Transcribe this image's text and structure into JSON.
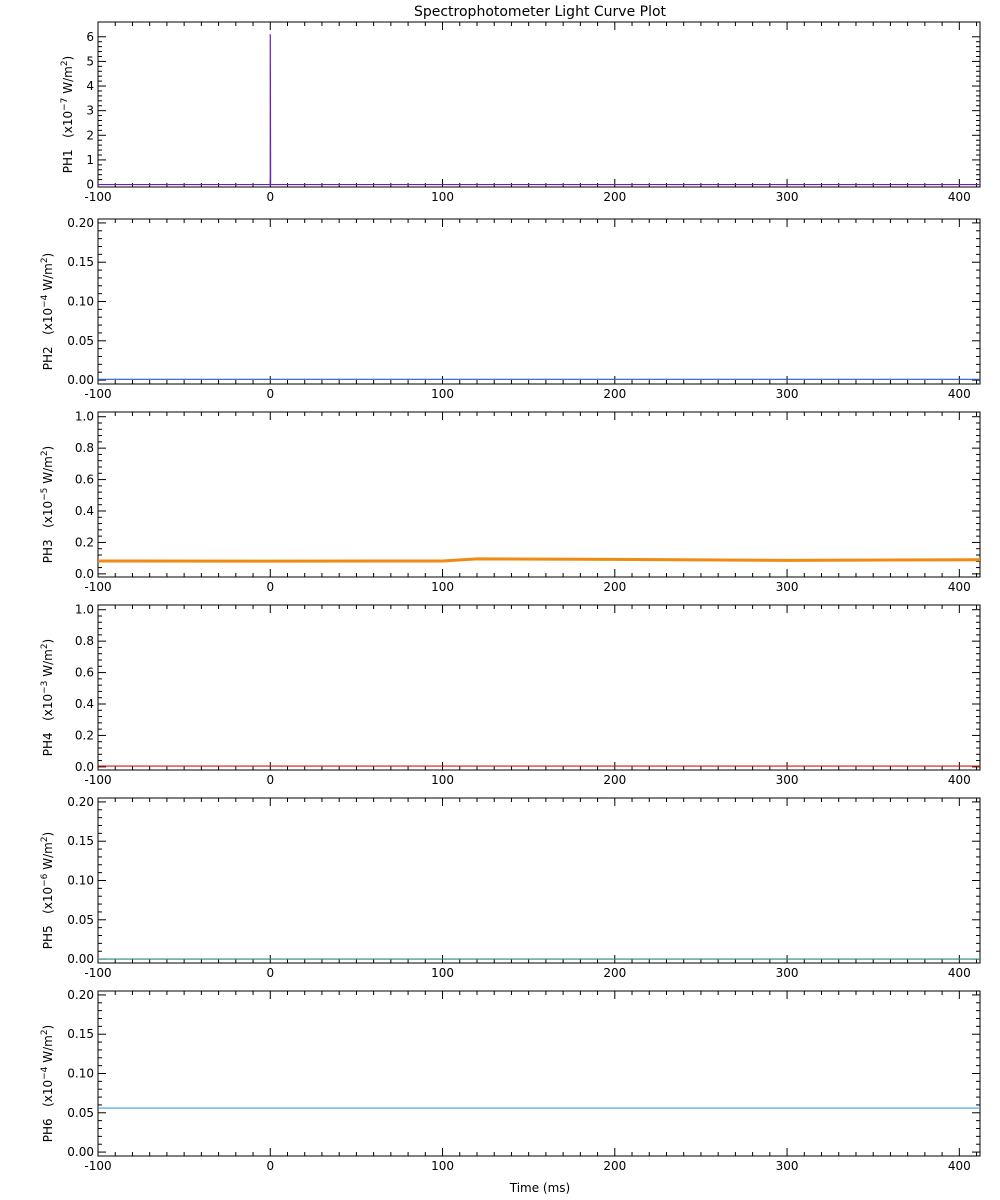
{
  "title": "Spectrophotometer Light Curve Plot",
  "xlabel": "Time (ms)",
  "chart_data": [
    {
      "type": "line",
      "panel": "PH1",
      "ylabel_name": "PH1",
      "ylabel_unit_base": "(x10",
      "ylabel_unit_exp": "−7",
      "ylabel_unit_rest": " W/m",
      "ylabel_unit_pow": "2",
      "ylabel_unit_close": ")",
      "xlim": [
        -100,
        412
      ],
      "ylim": [
        -0.1,
        6.6
      ],
      "xticks": [
        -100,
        0,
        100,
        200,
        300,
        400
      ],
      "xtick_labels": [
        "-100",
        "0",
        "100",
        "200",
        "300",
        "400"
      ],
      "yticks": [
        0,
        1,
        2,
        3,
        4,
        5,
        6
      ],
      "ytick_labels": [
        "0",
        "1",
        "2",
        "3",
        "4",
        "5",
        "6"
      ],
      "color": "#6a1fb0",
      "series": [
        {
          "x": [
            -100,
            0,
            0,
            0.2,
            412
          ],
          "y": [
            0.0,
            0.0,
            6.1,
            0.0,
            0.0
          ]
        }
      ]
    },
    {
      "type": "line",
      "panel": "PH2",
      "ylabel_name": "PH2",
      "ylabel_unit_base": "(x10",
      "ylabel_unit_exp": "−4",
      "ylabel_unit_rest": " W/m",
      "ylabel_unit_pow": "2",
      "ylabel_unit_close": ")",
      "xlim": [
        -100,
        412
      ],
      "ylim": [
        -0.005,
        0.205
      ],
      "xticks": [
        -100,
        0,
        100,
        200,
        300,
        400
      ],
      "xtick_labels": [
        "-100",
        "0",
        "100",
        "200",
        "300",
        "400"
      ],
      "yticks": [
        0.0,
        0.05,
        0.1,
        0.15,
        0.2
      ],
      "ytick_labels": [
        "0.00",
        "0.05",
        "0.10",
        "0.15",
        "0.20"
      ],
      "color": "#2060c0",
      "series": [
        {
          "x": [
            -100,
            412
          ],
          "y": [
            0.001,
            0.001
          ]
        }
      ]
    },
    {
      "type": "line",
      "panel": "PH3",
      "ylabel_name": "PH3",
      "ylabel_unit_base": "(x10",
      "ylabel_unit_exp": "−5",
      "ylabel_unit_rest": " W/m",
      "ylabel_unit_pow": "2",
      "ylabel_unit_close": ")",
      "xlim": [
        -100,
        412
      ],
      "ylim": [
        -0.02,
        1.03
      ],
      "xticks": [
        -100,
        0,
        100,
        200,
        300,
        400
      ],
      "xtick_labels": [
        "-100",
        "0",
        "100",
        "200",
        "300",
        "400"
      ],
      "yticks": [
        0.0,
        0.2,
        0.4,
        0.6,
        0.8,
        1.0
      ],
      "ytick_labels": [
        "0.0",
        "0.2",
        "0.4",
        "0.6",
        "0.8",
        "1.0"
      ],
      "color": "#f08a10",
      "series": [
        {
          "x": [
            -100,
            0,
            100,
            120,
            200,
            300,
            412
          ],
          "y": [
            0.082,
            0.081,
            0.082,
            0.095,
            0.092,
            0.086,
            0.09
          ]
        }
      ]
    },
    {
      "type": "line",
      "panel": "PH4",
      "ylabel_name": "PH4",
      "ylabel_unit_base": "(x10",
      "ylabel_unit_exp": "−3",
      "ylabel_unit_rest": " W/m",
      "ylabel_unit_pow": "2",
      "ylabel_unit_close": ")",
      "xlim": [
        -100,
        412
      ],
      "ylim": [
        -0.02,
        1.03
      ],
      "xticks": [
        -100,
        0,
        100,
        200,
        300,
        400
      ],
      "xtick_labels": [
        "-100",
        "0",
        "100",
        "200",
        "300",
        "400"
      ],
      "yticks": [
        0.0,
        0.2,
        0.4,
        0.6,
        0.8,
        1.0
      ],
      "ytick_labels": [
        "0.0",
        "0.2",
        "0.4",
        "0.6",
        "0.8",
        "1.0"
      ],
      "color": "#e01010",
      "series": [
        {
          "x": [
            -100,
            412
          ],
          "y": [
            0.005,
            0.005
          ]
        }
      ]
    },
    {
      "type": "line",
      "panel": "PH5",
      "ylabel_name": "PH5",
      "ylabel_unit_base": "(x10",
      "ylabel_unit_exp": "−6",
      "ylabel_unit_rest": " W/m",
      "ylabel_unit_pow": "2",
      "ylabel_unit_close": ")",
      "xlim": [
        -100,
        412
      ],
      "ylim": [
        -0.005,
        0.205
      ],
      "xticks": [
        -100,
        0,
        100,
        200,
        300,
        400
      ],
      "xtick_labels": [
        "-100",
        "0",
        "100",
        "200",
        "300",
        "400"
      ],
      "yticks": [
        0.0,
        0.05,
        0.1,
        0.15,
        0.2
      ],
      "ytick_labels": [
        "0.00",
        "0.05",
        "0.10",
        "0.15",
        "0.20"
      ],
      "color": "#2a8a80",
      "series": [
        {
          "x": [
            -100,
            412
          ],
          "y": [
            0.0,
            0.0
          ]
        }
      ]
    },
    {
      "type": "line",
      "panel": "PH6",
      "ylabel_name": "PH6",
      "ylabel_unit_base": "(x10",
      "ylabel_unit_exp": "−4",
      "ylabel_unit_rest": " W/m",
      "ylabel_unit_pow": "2",
      "ylabel_unit_close": ")",
      "xlim": [
        -100,
        412
      ],
      "ylim": [
        -0.005,
        0.205
      ],
      "xticks": [
        -100,
        0,
        100,
        200,
        300,
        400
      ],
      "xtick_labels": [
        "-100",
        "0",
        "100",
        "200",
        "300",
        "400"
      ],
      "yticks": [
        0.0,
        0.05,
        0.1,
        0.15,
        0.2
      ],
      "ytick_labels": [
        "0.00",
        "0.05",
        "0.10",
        "0.15",
        "0.20"
      ],
      "color": "#3aa0e0",
      "series": [
        {
          "x": [
            -100,
            412
          ],
          "y": [
            0.056,
            0.056
          ]
        }
      ]
    }
  ]
}
